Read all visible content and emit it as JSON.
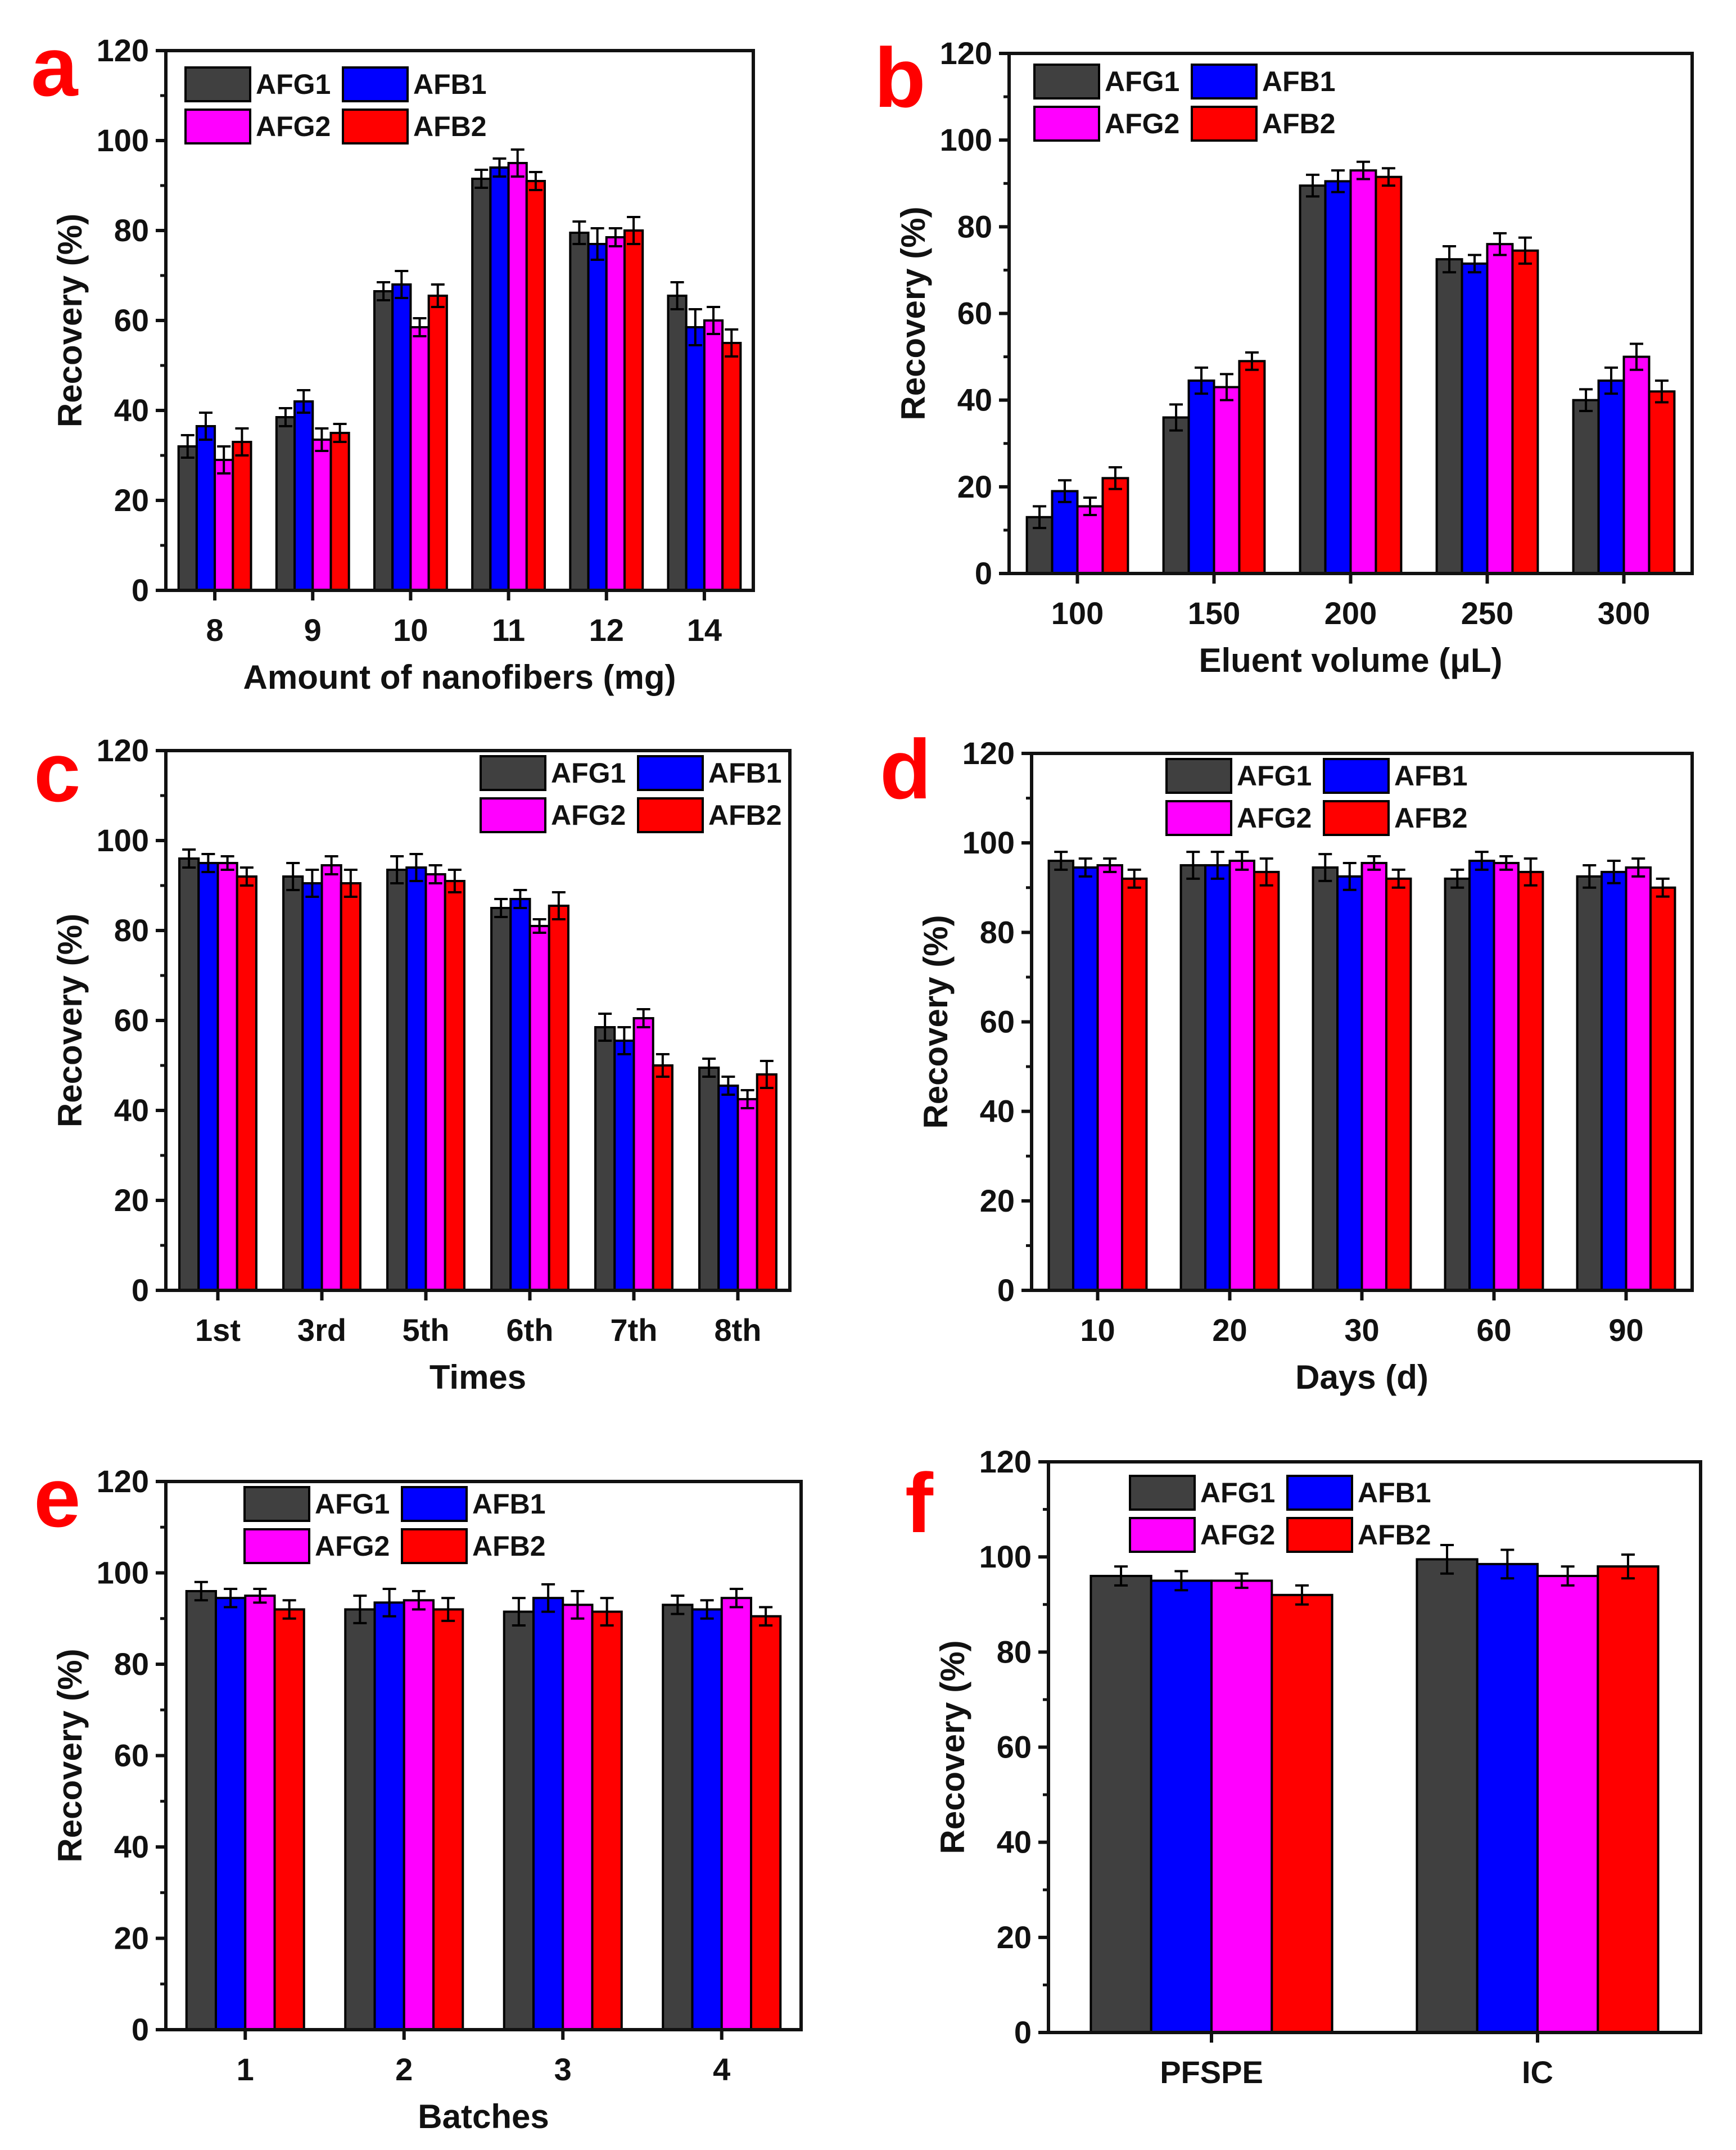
{
  "figure": {
    "background": "#ffffff"
  },
  "palette": {
    "AFG1": "#404040",
    "AFB1": "#0000ff",
    "AFG2": "#ff00ff",
    "AFB2": "#ff0000",
    "panel_letter": "#ff0000"
  },
  "chart_data": [
    {
      "id": "a",
      "letter": "a",
      "type": "bar",
      "xlabel": "Amount of nanofibers (mg)",
      "ylabel": "Recovery (%)",
      "ylim": [
        0,
        120
      ],
      "yticks": [
        "0",
        "20",
        "40",
        "60",
        "80",
        "100",
        "120"
      ],
      "categories": [
        "8",
        "9",
        "10",
        "11",
        "12",
        "14"
      ],
      "legend_position": "top-left",
      "series": [
        {
          "name": "AFG1",
          "values": [
            32,
            38.5,
            66.5,
            91.5,
            79.5,
            65.5
          ],
          "errors": [
            2.5,
            2,
            2,
            2,
            2.5,
            3
          ]
        },
        {
          "name": "AFB1",
          "values": [
            36.5,
            42,
            68,
            94,
            77,
            58.5
          ],
          "errors": [
            3,
            2.5,
            3,
            2,
            3.5,
            4
          ]
        },
        {
          "name": "AFG2",
          "values": [
            29,
            33.5,
            58.5,
            95,
            78.5,
            60
          ],
          "errors": [
            3,
            2.5,
            2,
            3,
            2,
            3
          ]
        },
        {
          "name": "AFB2",
          "values": [
            33,
            35,
            65.5,
            91,
            80,
            55
          ],
          "errors": [
            3,
            2,
            2.5,
            2,
            3,
            3
          ]
        }
      ]
    },
    {
      "id": "b",
      "letter": "b",
      "type": "bar",
      "xlabel": "Eluent volume (μL)",
      "ylabel": "Recovery (%)",
      "ylim": [
        0,
        120
      ],
      "yticks": [
        "0",
        "20",
        "40",
        "60",
        "80",
        "100",
        "120"
      ],
      "categories": [
        "100",
        "150",
        "200",
        "250",
        "300"
      ],
      "legend_position": "top-left",
      "series": [
        {
          "name": "AFG1",
          "values": [
            13,
            36,
            89.5,
            72.5,
            40
          ],
          "errors": [
            2.5,
            3,
            2.5,
            3,
            2.5
          ]
        },
        {
          "name": "AFB1",
          "values": [
            19,
            44.5,
            90.5,
            71.5,
            44.5
          ],
          "errors": [
            2.5,
            3,
            2.5,
            2,
            3
          ]
        },
        {
          "name": "AFG2",
          "values": [
            15.5,
            43,
            93,
            76,
            50
          ],
          "errors": [
            2,
            3,
            2,
            2.5,
            3
          ]
        },
        {
          "name": "AFB2",
          "values": [
            22,
            49,
            91.5,
            74.5,
            42
          ],
          "errors": [
            2.5,
            2,
            2,
            3,
            2.5
          ]
        }
      ]
    },
    {
      "id": "c",
      "letter": "c",
      "type": "bar",
      "xlabel": "Times",
      "ylabel": "Recovery (%)",
      "ylim": [
        0,
        120
      ],
      "yticks": [
        "0",
        "20",
        "40",
        "60",
        "80",
        "100",
        "120"
      ],
      "categories": [
        "1st",
        "3rd",
        "5th",
        "6th",
        "7th",
        "8th"
      ],
      "legend_position": "top-right",
      "series": [
        {
          "name": "AFG1",
          "values": [
            96,
            92,
            93.5,
            85,
            58.5,
            49.5
          ],
          "errors": [
            2,
            3,
            3,
            2,
            3,
            2
          ]
        },
        {
          "name": "AFB1",
          "values": [
            95,
            90.5,
            94,
            87,
            55.5,
            45.5
          ],
          "errors": [
            2,
            3,
            3,
            2,
            3,
            2
          ]
        },
        {
          "name": "AFG2",
          "values": [
            95,
            94.5,
            92.5,
            81,
            60.5,
            42.5
          ],
          "errors": [
            1.5,
            2,
            2,
            1.5,
            2,
            2
          ]
        },
        {
          "name": "AFB2",
          "values": [
            92,
            90.5,
            91,
            85.5,
            50,
            48
          ],
          "errors": [
            2,
            3,
            2.5,
            3,
            2.5,
            3
          ]
        }
      ]
    },
    {
      "id": "d",
      "letter": "d",
      "type": "bar",
      "xlabel": "Days (d)",
      "ylabel": "Recovery (%)",
      "ylim": [
        0,
        120
      ],
      "yticks": [
        "0",
        "20",
        "40",
        "60",
        "80",
        "100",
        "120"
      ],
      "categories": [
        "10",
        "20",
        "30",
        "60",
        "90"
      ],
      "legend_position": "top-center",
      "series": [
        {
          "name": "AFG1",
          "values": [
            96,
            95,
            94.5,
            92,
            92.5
          ],
          "errors": [
            2,
            3,
            3,
            2,
            2.5
          ]
        },
        {
          "name": "AFB1",
          "values": [
            94.5,
            95,
            92.5,
            96,
            93.5
          ],
          "errors": [
            2,
            3,
            3,
            2,
            2.5
          ]
        },
        {
          "name": "AFG2",
          "values": [
            95,
            96,
            95.5,
            95.5,
            94.5
          ],
          "errors": [
            1.5,
            2,
            1.5,
            1.5,
            2
          ]
        },
        {
          "name": "AFB2",
          "values": [
            92,
            93.5,
            92,
            93.5,
            90
          ],
          "errors": [
            2,
            3,
            2,
            3,
            2
          ]
        }
      ]
    },
    {
      "id": "e",
      "letter": "e",
      "type": "bar",
      "xlabel": "Batches",
      "ylabel": "Recovery (%)",
      "ylim": [
        0,
        120
      ],
      "yticks": [
        "0",
        "20",
        "40",
        "60",
        "80",
        "100",
        "120"
      ],
      "categories": [
        "1",
        "2",
        "3",
        "4"
      ],
      "legend_position": "top-center",
      "series": [
        {
          "name": "AFG1",
          "values": [
            96,
            92,
            91.5,
            93
          ],
          "errors": [
            2,
            3,
            3,
            2
          ]
        },
        {
          "name": "AFB1",
          "values": [
            94.5,
            93.5,
            94.5,
            92
          ],
          "errors": [
            2,
            3,
            3,
            2
          ]
        },
        {
          "name": "AFG2",
          "values": [
            95,
            94,
            93,
            94.5
          ],
          "errors": [
            1.5,
            2,
            3,
            2
          ]
        },
        {
          "name": "AFB2",
          "values": [
            92,
            92,
            91.5,
            90.5
          ],
          "errors": [
            2,
            2.5,
            3,
            2
          ]
        }
      ]
    },
    {
      "id": "f",
      "letter": "f",
      "type": "bar",
      "xlabel": "",
      "ylabel": "Recovery (%)",
      "ylim": [
        0,
        120
      ],
      "yticks": [
        "0",
        "20",
        "40",
        "60",
        "80",
        "100",
        "120"
      ],
      "categories": [
        "PFSPE",
        "IC"
      ],
      "legend_position": "top-center",
      "series": [
        {
          "name": "AFG1",
          "values": [
            96,
            99.5
          ],
          "errors": [
            2,
            3
          ]
        },
        {
          "name": "AFB1",
          "values": [
            95,
            98.5
          ],
          "errors": [
            2,
            3
          ]
        },
        {
          "name": "AFG2",
          "values": [
            95,
            96
          ],
          "errors": [
            1.5,
            2
          ]
        },
        {
          "name": "AFB2",
          "values": [
            92,
            98
          ],
          "errors": [
            2,
            2.5
          ]
        }
      ]
    }
  ]
}
